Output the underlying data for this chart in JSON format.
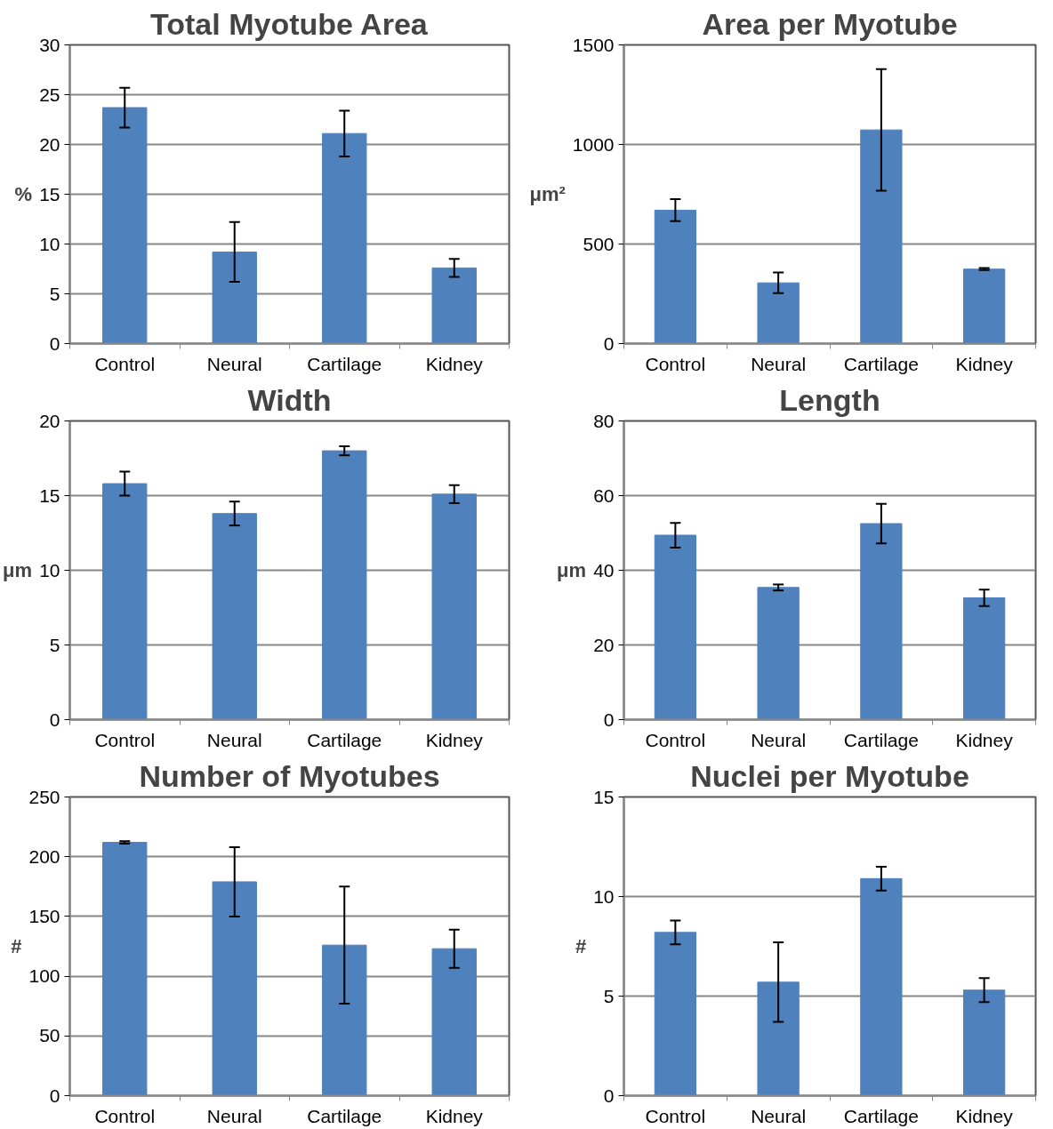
{
  "chart_data": [
    {
      "type": "bar",
      "title": "Total Myotube Area",
      "ylabel": "%",
      "categories": [
        "Control",
        "Neural",
        "Cartilage",
        "Kidney"
      ],
      "values": [
        23.7,
        9.2,
        21.1,
        7.6
      ],
      "errors": [
        2.0,
        3.0,
        2.3,
        0.9
      ],
      "color": "#4f81bd",
      "ylim": [
        0,
        30
      ],
      "yticks": [
        0,
        5,
        10,
        15,
        20,
        25,
        30
      ],
      "grid": "y"
    },
    {
      "type": "bar",
      "title": "Area per Myotube",
      "ylabel": "μm²",
      "categories": [
        "Control",
        "Neural",
        "Cartilage",
        "Kidney"
      ],
      "values": [
        670,
        305,
        1073,
        374
      ],
      "errors": [
        55,
        52,
        305,
        5
      ],
      "color": "#4f81bd",
      "ylim": [
        0,
        1500
      ],
      "yticks": [
        0,
        500,
        1000,
        1500
      ],
      "grid": "y"
    },
    {
      "type": "bar",
      "title": "Width",
      "ylabel": "μm",
      "categories": [
        "Control",
        "Neural",
        "Cartilage",
        "Kidney"
      ],
      "values": [
        15.8,
        13.8,
        18.0,
        15.1
      ],
      "errors": [
        0.8,
        0.8,
        0.3,
        0.6
      ],
      "color": "#4f81bd",
      "ylim": [
        0,
        20
      ],
      "yticks": [
        0,
        5,
        10,
        15,
        20
      ],
      "grid": "y"
    },
    {
      "type": "bar",
      "title": "Length",
      "ylabel": "μm",
      "categories": [
        "Control",
        "Neural",
        "Cartilage",
        "Kidney"
      ],
      "values": [
        49.4,
        35.4,
        52.5,
        32.6
      ],
      "errors": [
        3.3,
        0.8,
        5.3,
        2.2
      ],
      "color": "#4f81bd",
      "ylim": [
        0,
        80
      ],
      "yticks": [
        0,
        20,
        40,
        60,
        80
      ],
      "grid": "y"
    },
    {
      "type": "bar",
      "title": "Number of Myotubes",
      "ylabel": "#",
      "categories": [
        "Control",
        "Neural",
        "Cartilage",
        "Kidney"
      ],
      "values": [
        212,
        179,
        126,
        123
      ],
      "errors": [
        1,
        29,
        49,
        16
      ],
      "color": "#4f81bd",
      "ylim": [
        0,
        250
      ],
      "yticks": [
        0,
        50,
        100,
        150,
        200,
        250
      ],
      "grid": "y"
    },
    {
      "type": "bar",
      "title": "Nuclei per Myotube",
      "ylabel": "#",
      "categories": [
        "Control",
        "Neural",
        "Cartilage",
        "Kidney"
      ],
      "values": [
        8.2,
        5.7,
        10.9,
        5.3
      ],
      "errors": [
        0.6,
        2.0,
        0.6,
        0.6
      ],
      "color": "#4f81bd",
      "ylim": [
        0,
        15
      ],
      "yticks": [
        0,
        5,
        10,
        15
      ],
      "grid": "y"
    }
  ]
}
